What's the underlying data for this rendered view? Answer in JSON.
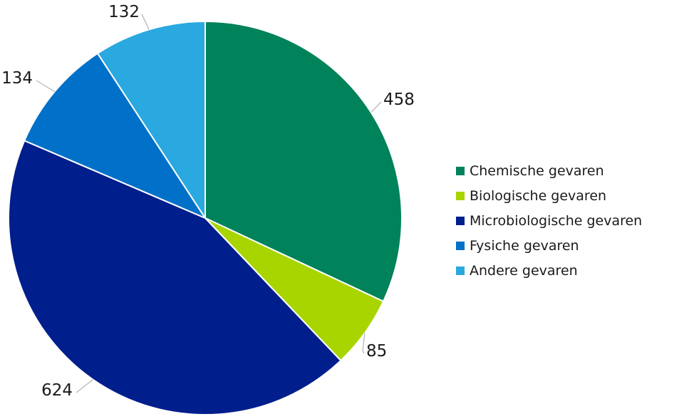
{
  "chart_data": {
    "type": "pie",
    "title": "",
    "categories": [
      "Chemische gevaren",
      "Biologische gevaren",
      "Microbiologische gevaren",
      "Fysiche gevaren",
      "Andere gevaren"
    ],
    "values": [
      458,
      85,
      624,
      134,
      132
    ],
    "data_labels": [
      "458",
      "85",
      "624",
      "134",
      "132"
    ],
    "colors": [
      "#00825A",
      "#A8D500",
      "#001E8C",
      "#0070C8",
      "#2AA8E0"
    ],
    "start_angle": "12 o'clock",
    "direction": "clockwise",
    "legend_position": "right"
  }
}
